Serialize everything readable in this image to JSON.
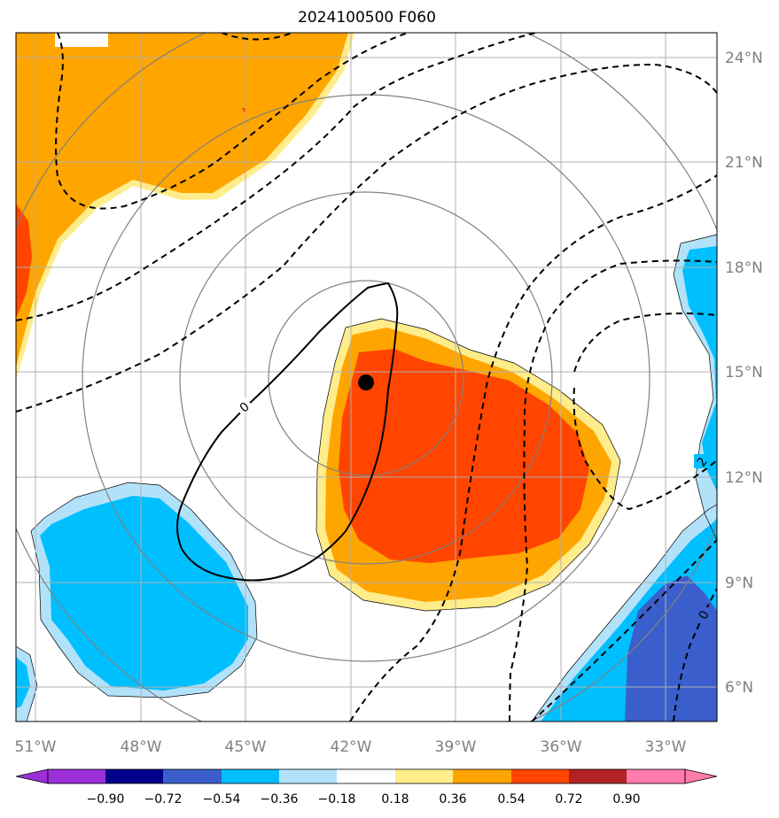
{
  "title": "2024100500 F060",
  "lon_labels": [
    "51°W",
    "48°W",
    "45°W",
    "42°W",
    "39°W",
    "36°W",
    "33°W"
  ],
  "lat_labels": [
    "24°N",
    "21°N",
    "18°N",
    "15°N",
    "12°N",
    "9°N",
    "6°N"
  ],
  "colorbar": {
    "tick_labels": [
      "−0.90",
      "−0.72",
      "−0.54",
      "−0.36",
      "−0.18",
      "0.18",
      "0.36",
      "0.54",
      "0.72",
      "0.90"
    ],
    "colors": [
      "#9b30d9",
      "#00008b",
      "#3a5fcd",
      "#00bfff",
      "#b2e2fa",
      "#ffffff",
      "#ffec8b",
      "#ffa500",
      "#ff4500",
      "#b22222",
      "#ff7bac"
    ]
  },
  "contour_labels": [
    "0",
    "2",
    "0"
  ],
  "center_marker": {
    "lon": -41.5,
    "lat": 14.7,
    "color": "#000000"
  },
  "colors": {
    "grid": "#b0b0b0",
    "range_rings": "#808080",
    "axis_label": "#808080",
    "orange": "#ffa500",
    "red_orange": "#ff4500",
    "light_yellow": "#ffec8b",
    "deep_sky_blue": "#00bfff",
    "light_blue": "#b2e2fa",
    "royal_blue": "#3a5fcd"
  }
}
